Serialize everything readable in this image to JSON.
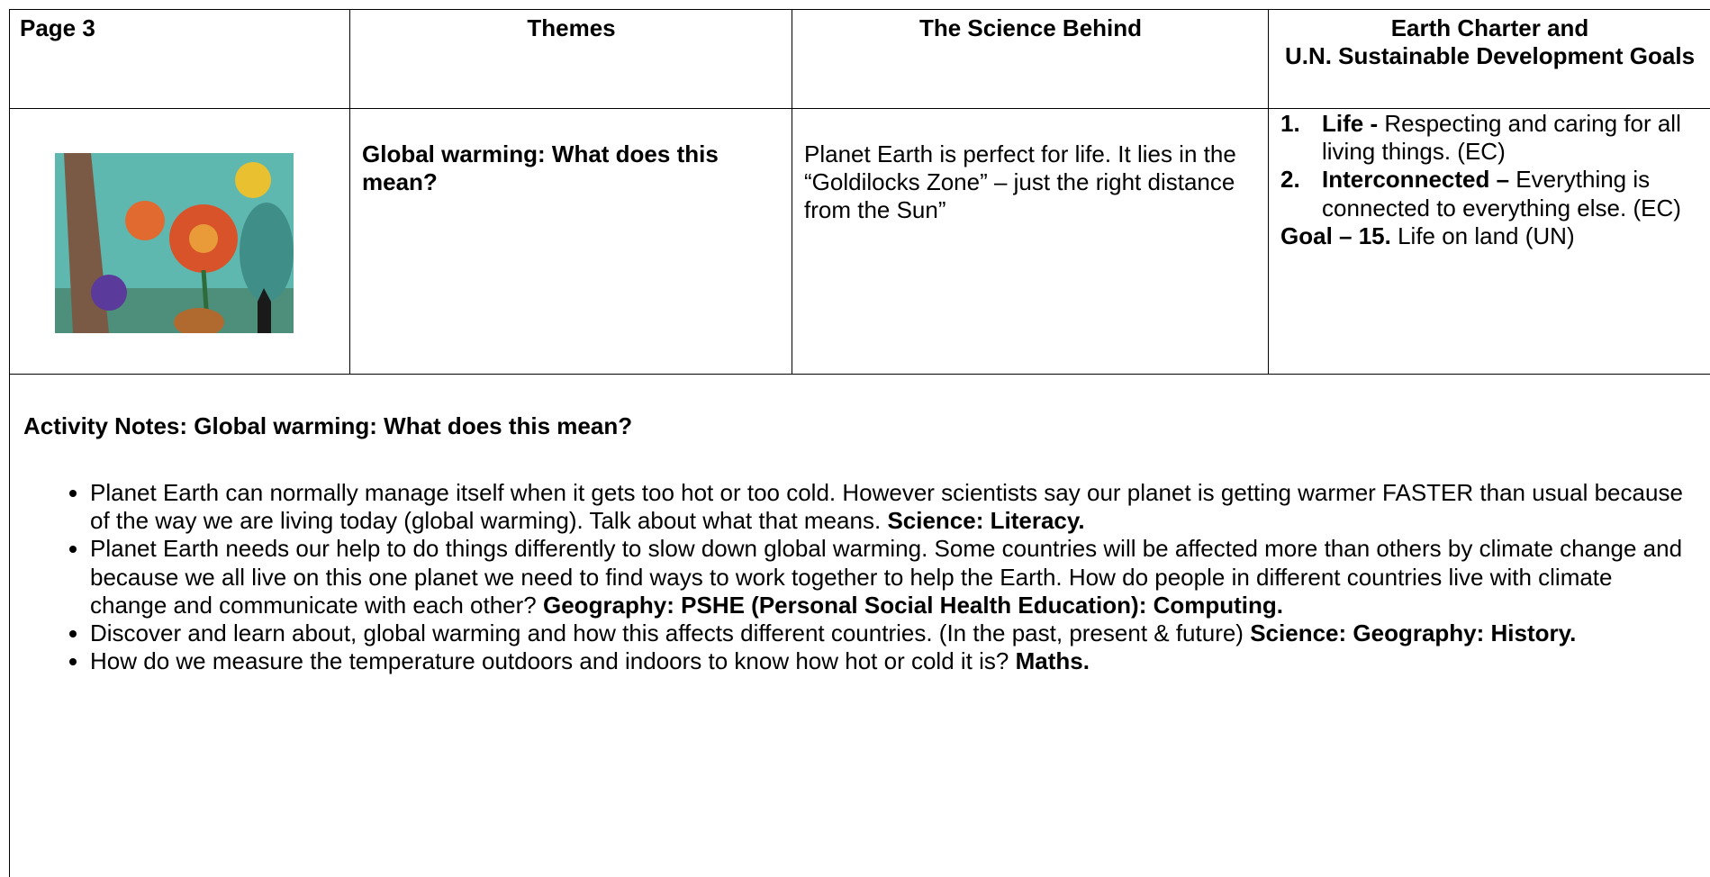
{
  "header": {
    "page": "Page 3",
    "themes": "Themes",
    "science": "The Science Behind",
    "goals_line1": "Earth Charter and",
    "goals_line2": "U.N. Sustainable Development Goals"
  },
  "row": {
    "theme": "Global warming: What does this mean?",
    "science": "Planet Earth is perfect for life.  It lies in the “Goldilocks Zone” – just the right distance from the Sun”",
    "goals": [
      {
        "number": "1.",
        "label": "Life -",
        "text": "Respecting and caring for all living things. (EC)"
      },
      {
        "number": "2.",
        "label": "Interconnected –",
        "text": "Everything is connected to everything else. (EC)"
      }
    ],
    "goal_un": {
      "label": "Goal – 15.",
      "text": "Life on land (UN)"
    }
  },
  "activity": {
    "title": "Activity Notes: Global warming: What does this mean?",
    "bullets": [
      {
        "text": "Planet Earth can normally manage itself when it gets too hot or too cold. However scientists say our planet is getting warmer FASTER than usual because of the way we are living today (global warming). Talk about what that means.",
        "subjects": "Science: Literacy."
      },
      {
        "text": "Planet Earth needs our help to do things differently to slow down global warming. Some countries will be affected more than others by climate change and because we all live on this one planet we need to find ways to work together to help the Earth. How do people in different countries live with climate change and communicate with each other?",
        "subjects": "Geography: PSHE (Personal Social Health Education): Computing."
      },
      {
        "text": "Discover and learn about, global warming and how this affects different countries. (In the past, present & future)",
        "subjects": "Science: Geography: History."
      },
      {
        "text": "How do we measure the temperature outdoors and indoors to know how hot or cold it is?",
        "subjects": "Maths."
      }
    ]
  }
}
